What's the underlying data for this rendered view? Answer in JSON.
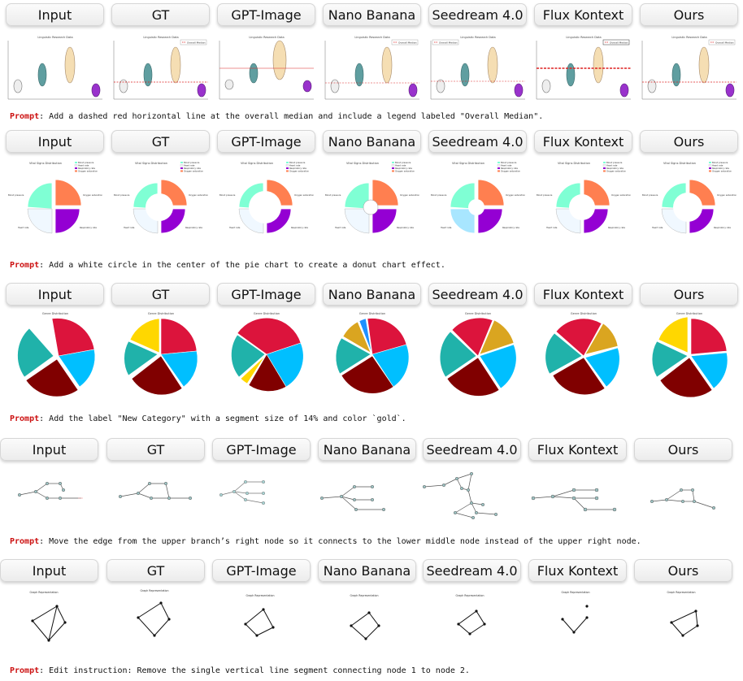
{
  "columns": [
    "Input",
    "GT",
    "GPT-Image",
    "Nano Banana",
    "Seedream 4.0",
    "Flux Kontext",
    "Ours"
  ],
  "prompt_label": "Prompt",
  "prompt_sep": ": ",
  "rows": [
    {
      "kind": "violin",
      "chart_title": "Linguistic Research Data",
      "legend_text": "Overall Median",
      "prompt": "Add a dashed red horizontal line at the overall median and include a legend labeled \"Overall Median\"."
    },
    {
      "kind": "donut",
      "chart_title": "Vital Signs Distribution",
      "legend": [
        "Blood pressure",
        "Heart rate",
        "Respiratory rate",
        "Oxygen saturation"
      ],
      "slice_labels": [
        "Blood pressure",
        "Oxygen saturation",
        "Heart rate",
        "Respiratory rate"
      ],
      "prompt": "Add a white circle in the center of the pie chart to create a donut chart effect."
    },
    {
      "kind": "pie",
      "chart_title": "Genre Distribution",
      "prompt": "Add the label \"New Category\" with a segment size of 14% and color `gold`."
    },
    {
      "kind": "tree",
      "prompt": "Move the edge from the upper branch’s right node so it connects to the lower middle node instead of the upper right node."
    },
    {
      "kind": "graph",
      "chart_title": "Graph Representation",
      "prompt": "Edit instruction: Remove the single vertical line segment connecting node 1 to node 2."
    }
  ],
  "colors": {
    "prompt_label": "#cc1111",
    "violin": [
      "#eeeeee",
      "#5f9ea0",
      "#f5deb3",
      "#9932cc"
    ],
    "donut": [
      "#7fffd4",
      "#ff7f50",
      "#f0f8ff",
      "#9400d3"
    ],
    "pie": [
      "#dc143c",
      "#00bfff",
      "#800000",
      "#20b2aa",
      "#ffd700"
    ]
  }
}
